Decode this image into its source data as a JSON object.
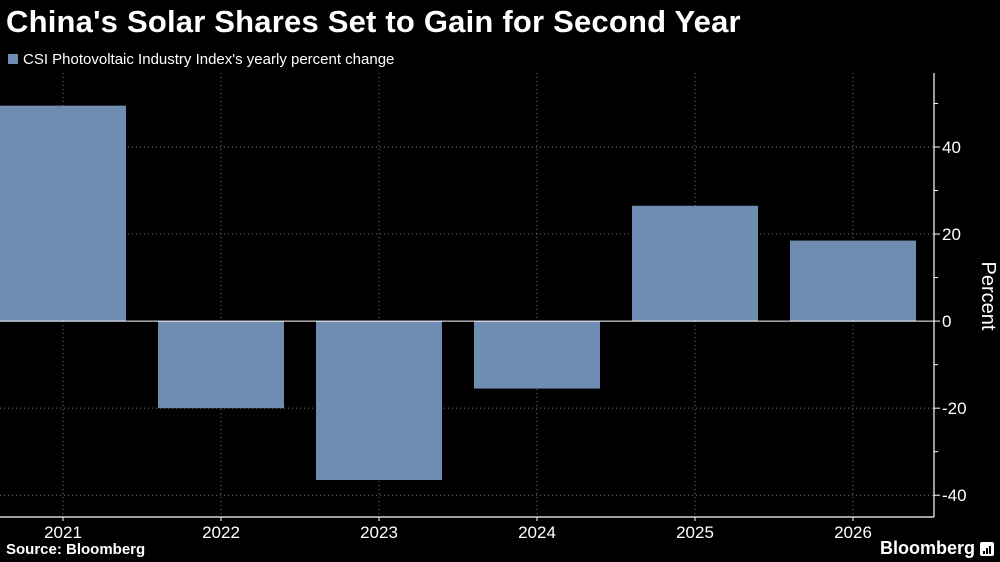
{
  "chart_data": {
    "type": "bar",
    "title": "China's Solar Shares Set to Gain for Second Year",
    "categories": [
      "2021",
      "2022",
      "2023",
      "2024",
      "2025",
      "2026"
    ],
    "series": [
      {
        "name": "CSI Photovoltaic Industry Index's yearly percent change",
        "values": [
          49.5,
          -20,
          -36.5,
          -15.5,
          26.5,
          18.5
        ]
      }
    ],
    "xlabel": "",
    "ylabel": "Percent",
    "ylim": [
      -45,
      57
    ],
    "yticks": [
      40,
      20,
      0,
      -20,
      -40
    ],
    "ytick_labels": [
      "40",
      "20",
      "0",
      "-20",
      "-40"
    ],
    "grid": true,
    "legend_position": "top-left",
    "axis_side": "right"
  },
  "footer": {
    "source": "Source: Bloomberg",
    "brand": "Bloomberg"
  },
  "icons": {
    "brand": "bar-chart-icon"
  },
  "colors": {
    "background": "#000000",
    "bar": "#6f8db2",
    "grid": "#777777",
    "text": "#ffffff"
  }
}
